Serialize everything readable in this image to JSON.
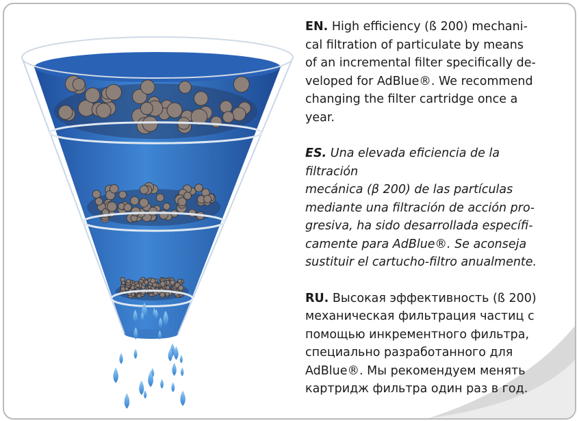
{
  "paragraphs": [
    {
      "label": "EN.",
      "lines": [
        "High efficiency (ß 200) mechani-",
        "cal filtration of particulate by means",
        "of an incremental filter specifically de-",
        "veloped for AdBlue®. We recommend",
        "changing the filter cartridge once a",
        "year."
      ]
    },
    {
      "label": "ES.",
      "lines": [
        "Una elevada eficiencia de la",
        "filtración",
        "mecánica (β 200) de las partículas",
        "mediante una filtración de acción pro-",
        "gresiva, ha sido desarrollada específi-",
        "camente para AdBlue®. Se aconseja",
        "sustituir el cartucho-filtro anualmente."
      ]
    },
    {
      "label": "RU.",
      "lines": [
        "Высокая эффективность (ß 200)",
        "механическая фильтрация частиц с",
        "помощью инкрементного фильтра,",
        "специально разработанного для",
        "AdBlue®. Мы рекомендуем менять",
        "картридж фильтра один раз в год."
      ]
    }
  ]
}
